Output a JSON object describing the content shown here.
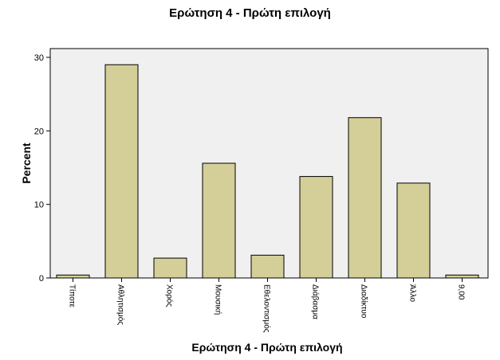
{
  "chart_data": {
    "type": "bar",
    "title": "Ερώτηση 4 - Πρώτη επιλογή",
    "xlabel": "Ερώτηση 4 - Πρώτη επιλογή",
    "ylabel": "Percent",
    "categories": [
      "Τίποτε",
      "Αθλητισμός",
      "Χορός",
      "Μουσική",
      "Εθελοντισμός",
      "Διάβασμα",
      "Διαδίκτυο",
      "Άλλο",
      "9,00"
    ],
    "values": [
      0.4,
      29.0,
      2.7,
      15.6,
      3.1,
      13.8,
      21.8,
      12.9,
      0.4
    ],
    "yticks": [
      0,
      10,
      20,
      30
    ],
    "ylim": [
      0,
      30
    ],
    "grid": false,
    "colors": {
      "bar_fill": "#d4cf98",
      "bar_stroke": "#000000",
      "plot_background": "#f0f0f0"
    }
  }
}
